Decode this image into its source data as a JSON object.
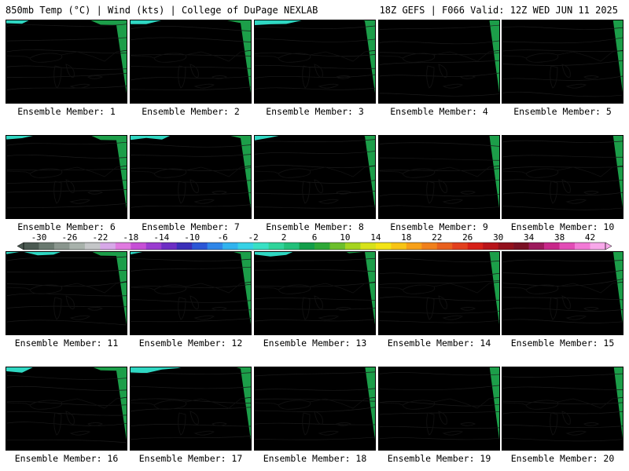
{
  "header": {
    "left": "850mb Temp (°C) | Wind (kts) | College of DuPage NEXLAB",
    "right": "18Z GEFS | F066 Valid: 12Z WED JUN 11 2025"
  },
  "panels": [
    {
      "caption": "Ensemble Member: 1"
    },
    {
      "caption": "Ensemble Member: 2"
    },
    {
      "caption": "Ensemble Member: 3"
    },
    {
      "caption": "Ensemble Member: 4"
    },
    {
      "caption": "Ensemble Member: 5"
    },
    {
      "caption": "Ensemble Member: 6"
    },
    {
      "caption": "Ensemble Member: 7"
    },
    {
      "caption": "Ensemble Member: 8"
    },
    {
      "caption": "Ensemble Member: 9"
    },
    {
      "caption": "Ensemble Member: 10"
    },
    {
      "caption": "Ensemble Member: 11"
    },
    {
      "caption": "Ensemble Member: 12"
    },
    {
      "caption": "Ensemble Member: 13"
    },
    {
      "caption": "Ensemble Member: 14"
    },
    {
      "caption": "Ensemble Member: 15"
    },
    {
      "caption": "Ensemble Member: 16"
    },
    {
      "caption": "Ensemble Member: 17"
    },
    {
      "caption": "Ensemble Member: 18"
    },
    {
      "caption": "Ensemble Member: 19"
    },
    {
      "caption": "Ensemble Member: 20"
    }
  ],
  "colorbar": {
    "labels": [
      "-30",
      "-26",
      "-22",
      "-18",
      "-14",
      "-10",
      "-6",
      "-2",
      "2",
      "6",
      "10",
      "14",
      "18",
      "22",
      "26",
      "30",
      "34",
      "38",
      "42"
    ],
    "colors": [
      "#4b5a52",
      "#6a7a70",
      "#8a968e",
      "#a8b2ab",
      "#c4c6c8",
      "#d7a8e8",
      "#e07ae0",
      "#c64fd6",
      "#9a3cd0",
      "#6d2ec4",
      "#3b2fb8",
      "#2c57d6",
      "#2f86e8",
      "#31b3ee",
      "#36d2e6",
      "#38e0c4",
      "#2fd49a",
      "#22c07a",
      "#139e4a",
      "#2ea837",
      "#6cbf2c",
      "#a5d41f",
      "#d7e21a",
      "#f3e416",
      "#f8c414",
      "#f7a018",
      "#f0801c",
      "#e8601e",
      "#e2401e",
      "#d62018",
      "#b8141a",
      "#92101c",
      "#7a1024",
      "#9c1a5c",
      "#c8288a",
      "#e24cb6",
      "#f27ad6",
      "#f8a8ea"
    ]
  }
}
